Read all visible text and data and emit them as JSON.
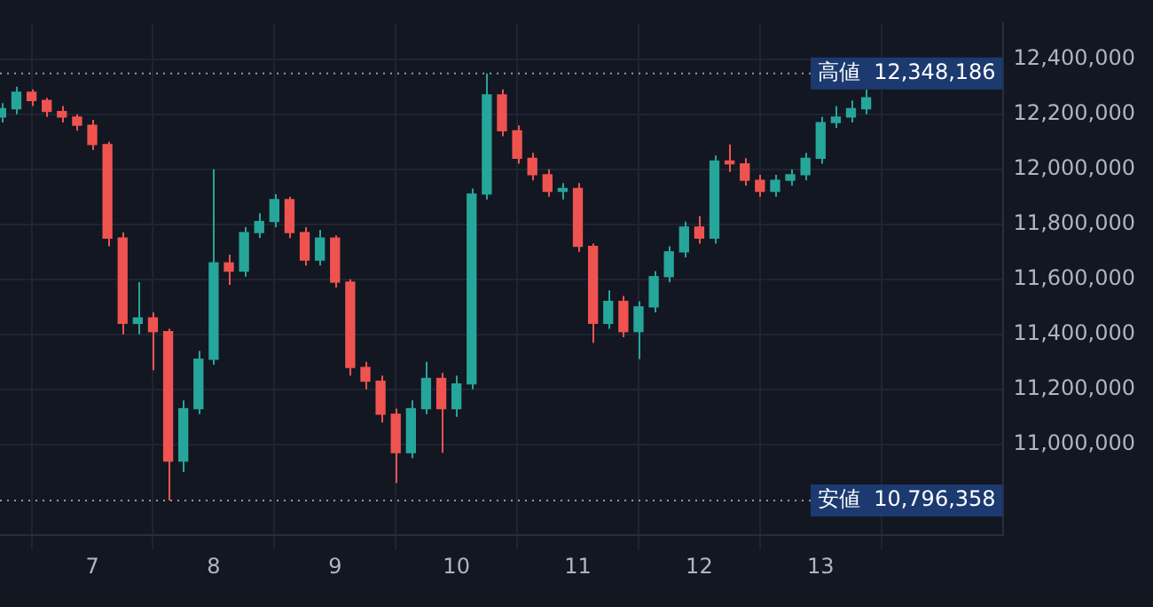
{
  "chart_data": {
    "type": "candlestick",
    "x": [
      6.25,
      6.375,
      6.5,
      6.625,
      6.75,
      6.875,
      7,
      7.125,
      7.25,
      7.375,
      7.5,
      7.625,
      7.75,
      7.875,
      8,
      8.125,
      8.25,
      8.375,
      8.5,
      8.625,
      8.75,
      8.875,
      9,
      9.125,
      9.25,
      9.375,
      9.5,
      9.625,
      9.75,
      9.875,
      10,
      10.125,
      10.25,
      10.375,
      10.5,
      10.625,
      10.75,
      10.875,
      11,
      11.125,
      11.25,
      11.375,
      11.5,
      11.625,
      11.75,
      11.875,
      12,
      12.125,
      12.25,
      12.375,
      12.5,
      12.625,
      12.75,
      12.875,
      13,
      13.125,
      13.25,
      13.375
    ],
    "ohlc": [
      [
        12190000,
        12240000,
        12170000,
        12220000
      ],
      [
        12220000,
        12300000,
        12200000,
        12280000
      ],
      [
        12280000,
        12290000,
        12230000,
        12250000
      ],
      [
        12250000,
        12260000,
        12190000,
        12210000
      ],
      [
        12210000,
        12230000,
        12170000,
        12190000
      ],
      [
        12190000,
        12200000,
        12140000,
        12160000
      ],
      [
        12160000,
        12180000,
        12070000,
        12090000
      ],
      [
        12090000,
        12100000,
        11720000,
        11750000
      ],
      [
        11750000,
        11770000,
        11400000,
        11440000
      ],
      [
        11440000,
        11590000,
        11400000,
        11460000
      ],
      [
        11460000,
        11480000,
        11270000,
        11410000
      ],
      [
        11410000,
        11420000,
        10796358,
        10940000
      ],
      [
        10940000,
        11160000,
        10900000,
        11130000
      ],
      [
        11130000,
        11340000,
        11110000,
        11310000
      ],
      [
        11310000,
        12000000,
        11290000,
        11660000
      ],
      [
        11660000,
        11690000,
        11580000,
        11630000
      ],
      [
        11630000,
        11790000,
        11610000,
        11770000
      ],
      [
        11770000,
        11840000,
        11750000,
        11810000
      ],
      [
        11810000,
        11910000,
        11790000,
        11890000
      ],
      [
        11890000,
        11900000,
        11750000,
        11770000
      ],
      [
        11770000,
        11790000,
        11650000,
        11670000
      ],
      [
        11670000,
        11780000,
        11650000,
        11750000
      ],
      [
        11750000,
        11760000,
        11570000,
        11590000
      ],
      [
        11590000,
        11600000,
        11250000,
        11280000
      ],
      [
        11280000,
        11300000,
        11200000,
        11230000
      ],
      [
        11230000,
        11250000,
        11080000,
        11110000
      ],
      [
        11110000,
        11130000,
        10860000,
        10970000
      ],
      [
        10970000,
        11160000,
        10950000,
        11130000
      ],
      [
        11130000,
        11300000,
        11110000,
        11240000
      ],
      [
        11240000,
        11260000,
        10970000,
        11130000
      ],
      [
        11130000,
        11250000,
        11100000,
        11220000
      ],
      [
        11220000,
        11930000,
        11200000,
        11910000
      ],
      [
        11910000,
        12348186,
        11890000,
        12270000
      ],
      [
        12270000,
        12290000,
        12120000,
        12140000
      ],
      [
        12140000,
        12160000,
        12020000,
        12040000
      ],
      [
        12040000,
        12060000,
        11960000,
        11980000
      ],
      [
        11980000,
        12000000,
        11900000,
        11920000
      ],
      [
        11920000,
        11950000,
        11890000,
        11930000
      ],
      [
        11930000,
        11950000,
        11700000,
        11720000
      ],
      [
        11720000,
        11730000,
        11370000,
        11440000
      ],
      [
        11440000,
        11560000,
        11420000,
        11520000
      ],
      [
        11520000,
        11540000,
        11390000,
        11410000
      ],
      [
        11410000,
        11520000,
        11310000,
        11500000
      ],
      [
        11500000,
        11630000,
        11480000,
        11610000
      ],
      [
        11610000,
        11720000,
        11590000,
        11700000
      ],
      [
        11700000,
        11810000,
        11680000,
        11790000
      ],
      [
        11790000,
        11830000,
        11730000,
        11750000
      ],
      [
        11750000,
        12050000,
        11730000,
        12030000
      ],
      [
        12030000,
        12090000,
        11990000,
        12020000
      ],
      [
        12020000,
        12040000,
        11940000,
        11960000
      ],
      [
        11960000,
        11980000,
        11900000,
        11920000
      ],
      [
        11920000,
        11980000,
        11900000,
        11960000
      ],
      [
        11960000,
        12000000,
        11940000,
        11980000
      ],
      [
        11980000,
        12060000,
        11960000,
        12040000
      ],
      [
        12040000,
        12190000,
        12020000,
        12170000
      ],
      [
        12170000,
        12230000,
        12150000,
        12190000
      ],
      [
        12190000,
        12250000,
        12170000,
        12220000
      ],
      [
        12220000,
        12290000,
        12200000,
        12260000
      ]
    ],
    "xlim": [
      6.24,
      14.5
    ],
    "xticks": [
      7,
      8,
      9,
      10,
      11,
      12,
      13
    ],
    "ylim": [
      10670000,
      12530000
    ],
    "yticks": [
      {
        "value": 11000000,
        "label": "11,000,000"
      },
      {
        "value": 11200000,
        "label": "11,200,000"
      },
      {
        "value": 11400000,
        "label": "11,400,000"
      },
      {
        "value": 11600000,
        "label": "11,600,000"
      },
      {
        "value": 11800000,
        "label": "11,800,000"
      },
      {
        "value": 12000000,
        "label": "12,000,000"
      },
      {
        "value": 12200000,
        "label": "12,200,000"
      },
      {
        "value": 12400000,
        "label": "12,400,000"
      }
    ],
    "ref_lines": [
      {
        "axis": "y",
        "value": 12348186,
        "label": "高値  12,348,186",
        "line_style": "dotted"
      },
      {
        "axis": "y",
        "value": 10796358,
        "label": "安値  10,796,358",
        "line_style": "dotted"
      }
    ],
    "grid": true
  }
}
